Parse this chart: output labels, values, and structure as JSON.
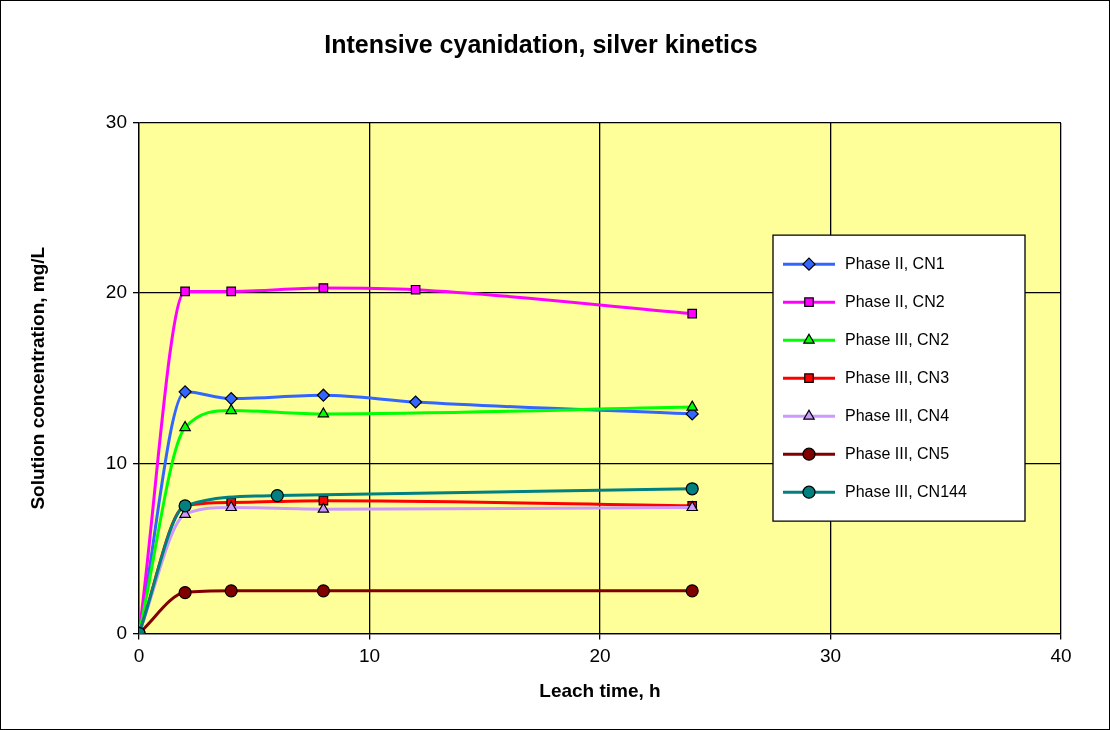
{
  "chart_data": {
    "type": "line",
    "title": "Intensive cyanidation, silver kinetics",
    "xlabel": "Leach time, h",
    "ylabel": "Solution concentration, mg/L",
    "xlim": [
      0,
      40
    ],
    "xticks": [
      0,
      10,
      20,
      30,
      40
    ],
    "ylim": [
      0,
      30
    ],
    "yticks": [
      0,
      10,
      20,
      30
    ],
    "grid": true,
    "legend": "right",
    "line_style": "solid",
    "series": [
      {
        "name": "Phase II, CN1",
        "color": "#3366ff",
        "marker": "diamond",
        "x": [
          0,
          2,
          4,
          8,
          12,
          24
        ],
        "values": [
          0,
          14.2,
          13.8,
          14.0,
          13.6,
          12.9
        ]
      },
      {
        "name": "Phase II, CN2",
        "color": "#ff00ff",
        "marker": "square",
        "x": [
          0,
          2,
          4,
          8,
          12,
          24
        ],
        "values": [
          0,
          20.1,
          20.1,
          20.3,
          20.2,
          18.8
        ]
      },
      {
        "name": "Phase III, CN2",
        "color": "#00ff00",
        "marker": "triangle",
        "x": [
          0,
          2,
          4,
          8,
          24
        ],
        "values": [
          0,
          12.1,
          13.1,
          12.9,
          13.3
        ]
      },
      {
        "name": "Phase III, CN3",
        "color": "#ff0000",
        "marker": "square",
        "x": [
          0,
          2,
          4,
          8,
          24
        ],
        "values": [
          0,
          7.5,
          7.7,
          7.8,
          7.5
        ]
      },
      {
        "name": "Phase III, CN4",
        "color": "#cc99ff",
        "marker": "triangle",
        "x": [
          0,
          2,
          4,
          8,
          24
        ],
        "values": [
          0,
          7.0,
          7.4,
          7.3,
          7.4
        ]
      },
      {
        "name": "Phase III, CN5",
        "color": "#800000",
        "marker": "circle",
        "x": [
          0,
          2,
          4,
          8,
          24
        ],
        "values": [
          0,
          2.4,
          2.5,
          2.5,
          2.5
        ]
      },
      {
        "name": "Phase III, CN144",
        "color": "#008080",
        "marker": "circle",
        "x": [
          0,
          2,
          6,
          24
        ],
        "values": [
          0,
          7.5,
          8.1,
          8.5
        ]
      }
    ]
  }
}
